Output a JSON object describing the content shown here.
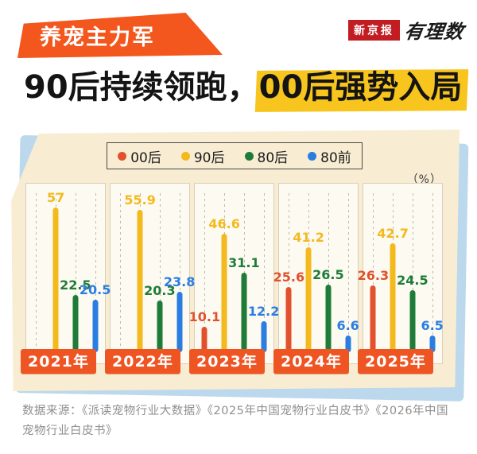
{
  "header": {
    "badge": "养宠主力军",
    "logo_primary": "新京报",
    "logo_secondary": "有理数",
    "title_plain": "90后持续领跑，",
    "title_highlight": "00后强势入局"
  },
  "chart_data": {
    "type": "bar",
    "title": "90后持续领跑，00后强势入局",
    "unit_label": "（%）",
    "categories": [
      "2021年",
      "2022年",
      "2023年",
      "2024年",
      "2025年"
    ],
    "series": [
      {
        "name": "00后",
        "color": "#e1512d",
        "values": [
          null,
          null,
          10.1,
          25.6,
          26.3
        ]
      },
      {
        "name": "90后",
        "color": "#f3b91d",
        "values": [
          57,
          55.9,
          46.6,
          41.2,
          42.7
        ]
      },
      {
        "name": "80后",
        "color": "#1e7c38",
        "values": [
          22.5,
          20.3,
          31.1,
          26.5,
          24.5
        ]
      },
      {
        "name": "80前",
        "color": "#2a7de1",
        "values": [
          20.5,
          23.8,
          12.2,
          6.6,
          6.5
        ]
      }
    ],
    "ylim": [
      0,
      60
    ],
    "legend_position": "top",
    "grid": "dashed-vertical"
  },
  "footer": {
    "source": "数据来源：《派读宠物行业大数据》《2025年中国宠物行业白皮书》《2026年中国宠物行业白皮书》"
  },
  "colors": {
    "accent_orange": "#f3571e",
    "highlight_yellow": "#f7c51d",
    "card_cream": "#f8edd3",
    "shadow_blue": "#bcd8ec",
    "year_badge_orange": "#ef5423",
    "logo_red": "#c21d23"
  }
}
